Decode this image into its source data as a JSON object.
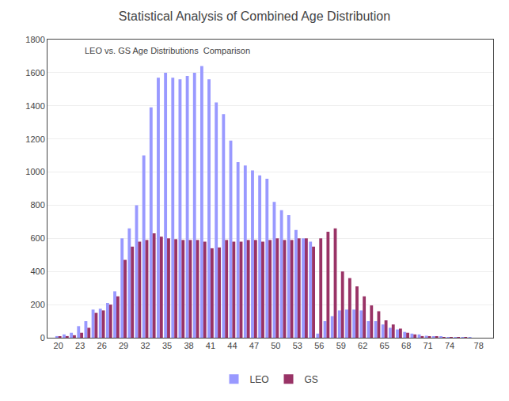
{
  "chart_data": {
    "type": "bar",
    "title": "Statistical Analysis of Combined Age Distribution",
    "subtitle": "LEO vs. GS Age Distributions  Comparison",
    "x": [
      20,
      21,
      22,
      23,
      24,
      25,
      26,
      27,
      28,
      29,
      30,
      31,
      32,
      33,
      34,
      35,
      36,
      37,
      38,
      39,
      40,
      41,
      42,
      43,
      44,
      45,
      46,
      47,
      48,
      49,
      50,
      51,
      52,
      53,
      54,
      55,
      56,
      57,
      58,
      59,
      60,
      61,
      62,
      63,
      64,
      65,
      66,
      67,
      68,
      69,
      70,
      71,
      72,
      73,
      74,
      75,
      76,
      77,
      78
    ],
    "series": [
      {
        "name": "LEO",
        "color": "#9999ff",
        "values": [
          10,
          20,
          30,
          70,
          100,
          170,
          175,
          210,
          280,
          600,
          660,
          800,
          1100,
          1390,
          1570,
          1600,
          1570,
          1560,
          1580,
          1600,
          1640,
          1560,
          1420,
          1350,
          1190,
          1060,
          1040,
          1010,
          980,
          960,
          820,
          770,
          740,
          650,
          600,
          580,
          25,
          100,
          130,
          165,
          170,
          170,
          165,
          100,
          100,
          80,
          60,
          50,
          35,
          25,
          20,
          12,
          8,
          5,
          4,
          3,
          2,
          1,
          0
        ]
      },
      {
        "name": "GS",
        "color": "#993366",
        "values": [
          5,
          10,
          15,
          30,
          60,
          150,
          165,
          200,
          250,
          470,
          550,
          580,
          590,
          630,
          610,
          600,
          595,
          590,
          590,
          590,
          580,
          540,
          545,
          590,
          580,
          580,
          590,
          590,
          580,
          590,
          600,
          590,
          590,
          600,
          600,
          550,
          600,
          640,
          660,
          400,
          360,
          310,
          250,
          195,
          160,
          105,
          80,
          55,
          30,
          20,
          10,
          8,
          5,
          4,
          3,
          2,
          1,
          0,
          0
        ]
      }
    ],
    "xlim": [
      18.5,
      80
    ],
    "xticks": [
      20,
      23,
      26,
      29,
      32,
      35,
      38,
      41,
      44,
      47,
      50,
      53,
      56,
      59,
      62,
      65,
      68,
      71,
      74,
      78
    ],
    "ylim": [
      0,
      1800
    ],
    "yticks": [
      0,
      200,
      400,
      600,
      800,
      1000,
      1200,
      1400,
      1600,
      1800
    ],
    "grid": true,
    "legend": "bottom"
  }
}
